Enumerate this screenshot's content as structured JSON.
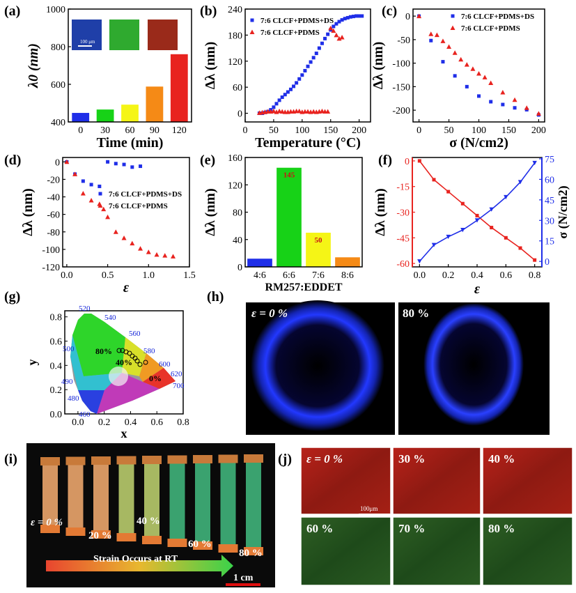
{
  "colors": {
    "blue": "#1f2ee8",
    "red": "#e8231f",
    "green": "#17d217",
    "yellow": "#f5f516",
    "orange": "#f58a16",
    "dark": "#000000"
  },
  "panels": {
    "a": {
      "label": "(a)",
      "inset_scale": "100 μm",
      "inset_colors": [
        "#1f3fa8",
        "#2faa2f",
        "#9a2a1a"
      ]
    },
    "b": {
      "label": "(b)"
    },
    "c": {
      "label": "(c)"
    },
    "d": {
      "label": "(d)"
    },
    "e": {
      "label": "(e)"
    },
    "f": {
      "label": "(f)"
    },
    "g": {
      "label": "(g)",
      "wavelength_labels": [
        "520",
        "540",
        "560",
        "580",
        "600",
        "620",
        "700",
        "500",
        "490",
        "480",
        "460"
      ],
      "strain_labels": [
        "80%",
        "40%",
        "0%"
      ]
    },
    "h": {
      "label": "(h)",
      "images": [
        "ε = 0 %",
        "80 %"
      ]
    },
    "i": {
      "label": "(i)",
      "strain_labels": [
        "ε = 0 %",
        "20 %",
        "40 %",
        "60 %",
        "80 %"
      ],
      "arrow_text": "Strain Occurs at RT",
      "scale_text": "1 cm"
    },
    "j": {
      "label": "(j)",
      "tiles": [
        "ε = 0 %",
        "30 %",
        "40 %",
        "60 %",
        "70 %",
        "80 %"
      ],
      "scale_text": "100μm"
    }
  },
  "chart_data": [
    {
      "panel": "a",
      "type": "bar",
      "categories": [
        "0",
        "30",
        "60",
        "90",
        "120"
      ],
      "values": [
        448,
        466,
        492,
        588,
        760
      ],
      "colors": [
        "#1f2ee8",
        "#17d217",
        "#f5f516",
        "#f58a16",
        "#e8231f"
      ],
      "xlabel": "Time (min)",
      "ylabel": "λ0 (nm)",
      "ylim": [
        400,
        1000
      ],
      "yticks": [
        400,
        600,
        800,
        1000
      ]
    },
    {
      "panel": "b",
      "type": "scatter",
      "xlabel": "Temperature (°C)",
      "ylabel": "Δλ (nm)",
      "xlim": [
        0,
        220
      ],
      "ylim": [
        -20,
        240
      ],
      "xticks": [
        0,
        50,
        100,
        150,
        200
      ],
      "yticks": [
        0,
        60,
        120,
        180,
        240
      ],
      "legend": "top-left",
      "series": [
        {
          "name": "7:6 CLCF+PDMS+DS",
          "marker": "square",
          "color": "#1f2ee8",
          "x": [
            25,
            30,
            35,
            40,
            45,
            50,
            55,
            60,
            65,
            70,
            75,
            80,
            85,
            90,
            95,
            100,
            105,
            110,
            115,
            120,
            125,
            130,
            135,
            140,
            145,
            150,
            155,
            160,
            165,
            170,
            175,
            180,
            185,
            190,
            195,
            200,
            205
          ],
          "y": [
            0,
            0,
            2,
            4,
            8,
            14,
            22,
            30,
            37,
            43,
            49,
            55,
            62,
            70,
            79,
            88,
            98,
            108,
            118,
            128,
            138,
            150,
            161,
            172,
            182,
            192,
            200,
            206,
            211,
            215,
            218,
            220,
            222,
            223,
            224,
            224,
            224
          ]
        },
        {
          "name": "7:6 CLCF+PDMS",
          "marker": "triangle",
          "color": "#e8231f",
          "x": [
            25,
            30,
            35,
            40,
            45,
            50,
            55,
            60,
            65,
            70,
            75,
            80,
            85,
            90,
            95,
            100,
            105,
            110,
            115,
            120,
            125,
            130,
            135,
            140,
            145,
            150,
            155,
            160,
            165,
            170
          ],
          "y": [
            1,
            2,
            3,
            4,
            4,
            5,
            3,
            5,
            4,
            3,
            3,
            4,
            4,
            5,
            5,
            3,
            4,
            4,
            3,
            4,
            3,
            4,
            5,
            4,
            4,
            196,
            190,
            180,
            172,
            175
          ]
        }
      ]
    },
    {
      "panel": "c",
      "type": "scatter",
      "xlabel": "σ (N/cm2)",
      "ylabel": "Δλ (nm)",
      "xlim": [
        -10,
        210
      ],
      "ylim": [
        -225,
        15
      ],
      "xticks": [
        0,
        50,
        100,
        150,
        200
      ],
      "yticks": [
        0,
        -50,
        -100,
        -150,
        -200
      ],
      "legend": "top-right",
      "series": [
        {
          "name": "7:6 CLCF+PDMS+DS",
          "marker": "square",
          "color": "#1f2ee8",
          "x": [
            0,
            20,
            40,
            60,
            80,
            100,
            120,
            140,
            160,
            180,
            200
          ],
          "y": [
            0,
            -52,
            -97,
            -127,
            -150,
            -170,
            -182,
            -188,
            -195,
            -199,
            -210
          ]
        },
        {
          "name": "7:6 CLCF+PDMS",
          "marker": "triangle",
          "color": "#e8231f",
          "x": [
            0,
            20,
            30,
            40,
            50,
            60,
            70,
            80,
            90,
            100,
            110,
            120,
            140,
            160,
            180,
            200
          ],
          "y": [
            0,
            -38,
            -40,
            -53,
            -65,
            -78,
            -92,
            -103,
            -112,
            -122,
            -130,
            -142,
            -162,
            -178,
            -195,
            -207
          ]
        }
      ]
    },
    {
      "panel": "d",
      "type": "scatter",
      "xlabel": "ε",
      "ylabel": "Δλ (nm)",
      "xlim": [
        -0.05,
        1.5
      ],
      "ylim": [
        -120,
        5
      ],
      "xticks": [
        0.0,
        0.5,
        1.0,
        1.5
      ],
      "yticks": [
        0,
        -20,
        -40,
        -60,
        -80,
        -100,
        -120
      ],
      "legend": "center",
      "series": [
        {
          "name": "7:6 CLCF+PDMS+DS",
          "marker": "square",
          "color": "#1f2ee8",
          "x": [
            0,
            0.1,
            0.2,
            0.3,
            0.4,
            0.5,
            0.6,
            0.7,
            0.8,
            0.9
          ],
          "y": [
            0,
            -14,
            -22,
            -26,
            -28,
            0,
            -2,
            -3,
            -6,
            -5
          ]
        },
        {
          "name": "7:6 CLCF+PDMS",
          "marker": "triangle",
          "color": "#e8231f",
          "x": [
            0,
            0.1,
            0.2,
            0.3,
            0.4,
            0.45,
            0.5,
            0.6,
            0.7,
            0.8,
            0.9,
            1.0,
            1.1,
            1.2,
            1.3
          ],
          "y": [
            0,
            -14,
            -36,
            -44,
            -48,
            -54,
            -63,
            -80,
            -87,
            -93,
            -99,
            -103,
            -106,
            -107,
            -108
          ]
        }
      ]
    },
    {
      "panel": "e",
      "type": "bar",
      "categories": [
        "4:6",
        "6:6",
        "7:6",
        "8:6"
      ],
      "values": [
        12,
        145,
        50,
        14
      ],
      "data_labels": [
        "",
        "145",
        "50",
        ""
      ],
      "colors": [
        "#1f2ee8",
        "#17d217",
        "#f5f516",
        "#f58a16"
      ],
      "xlabel": "RM257:EDDET",
      "ylabel": "Δλ (nm)",
      "ylim": [
        0,
        160
      ],
      "yticks": [
        0,
        40,
        80,
        120,
        160
      ]
    },
    {
      "panel": "f",
      "type": "line",
      "xlabel": "ε",
      "ylabel": "Δλ (nm)",
      "y2label": "σ (N/cm2)",
      "xlim": [
        -0.05,
        0.85
      ],
      "ylim": [
        -62,
        2
      ],
      "y2lim": [
        -4,
        76
      ],
      "xticks": [
        0.0,
        0.2,
        0.4,
        0.6,
        0.8
      ],
      "yticks": [
        0,
        -15,
        -30,
        -45,
        -60
      ],
      "y2ticks": [
        0,
        15,
        30,
        45,
        60,
        75
      ],
      "series": [
        {
          "name": "Δλ",
          "axis": "left",
          "marker": "square",
          "color": "#e8231f",
          "x": [
            0,
            0.1,
            0.2,
            0.3,
            0.4,
            0.5,
            0.6,
            0.7,
            0.8
          ],
          "y": [
            0,
            -11,
            -18,
            -25,
            -32,
            -39,
            -45,
            -51,
            -58
          ]
        },
        {
          "name": "σ",
          "axis": "right",
          "marker": "triangle-down",
          "color": "#1f2ee8",
          "x": [
            0,
            0.1,
            0.2,
            0.3,
            0.4,
            0.5,
            0.6,
            0.7,
            0.8
          ],
          "y": [
            0,
            12,
            18,
            23,
            30,
            38,
            47,
            58,
            72
          ]
        }
      ]
    }
  ]
}
